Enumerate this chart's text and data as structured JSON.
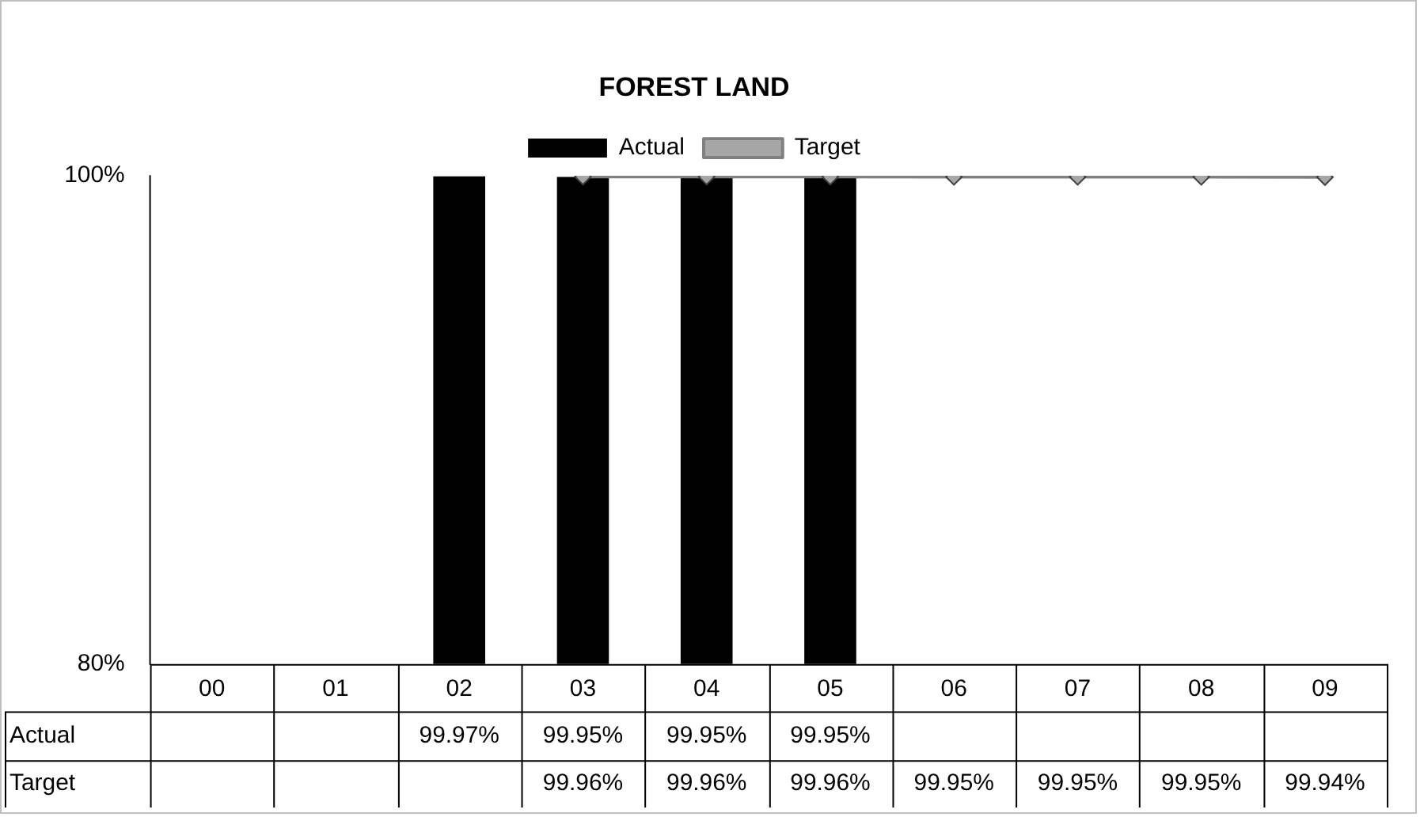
{
  "chart_data": {
    "type": "bar",
    "title": "FOREST LAND",
    "categories": [
      "00",
      "01",
      "02",
      "03",
      "04",
      "05",
      "06",
      "07",
      "08",
      "09"
    ],
    "series": [
      {
        "name": "Actual",
        "color": "#000000",
        "values": [
          null,
          null,
          99.97,
          99.95,
          99.95,
          99.95,
          null,
          null,
          null,
          null
        ],
        "value_labels": [
          null,
          null,
          "99.97%",
          "99.95%",
          "99.95%",
          "99.95%",
          null,
          null,
          null,
          null
        ]
      },
      {
        "name": "Target",
        "type": "line",
        "color": "#808080",
        "values": [
          null,
          null,
          null,
          99.96,
          99.96,
          99.96,
          99.95,
          99.95,
          99.95,
          99.94
        ],
        "value_labels": [
          null,
          null,
          null,
          "99.96%",
          "99.96%",
          "99.96%",
          "99.95%",
          "99.95%",
          "99.95%",
          "99.94%"
        ]
      }
    ],
    "ylim": [
      80,
      100
    ],
    "yticks": [
      {
        "value": 80,
        "label": "80%"
      },
      {
        "value": 100,
        "label": "100%"
      }
    ],
    "legend": "top",
    "marker": "diamond"
  }
}
